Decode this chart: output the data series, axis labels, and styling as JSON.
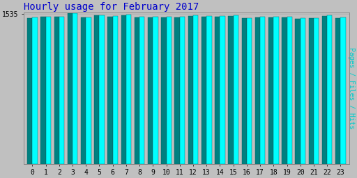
{
  "title": "Hourly usage for February 2017",
  "title_color": "#0000cc",
  "title_fontsize": 10,
  "background_color": "#c0c0c0",
  "plot_bg_color": "#c0c0c0",
  "ylabel_right": "Pages / Files / Hits",
  "ylabel_color": "#00cccc",
  "hours": [
    0,
    1,
    2,
    3,
    4,
    5,
    6,
    7,
    8,
    9,
    10,
    11,
    12,
    13,
    14,
    15,
    16,
    17,
    18,
    19,
    20,
    21,
    22,
    23
  ],
  "pages": [
    1492,
    1503,
    1503,
    1537,
    1495,
    1518,
    1508,
    1521,
    1498,
    1500,
    1498,
    1498,
    1513,
    1508,
    1508,
    1513,
    1488,
    1498,
    1501,
    1498,
    1485,
    1488,
    1513,
    1492
  ],
  "hits": [
    1497,
    1507,
    1507,
    1541,
    1499,
    1522,
    1512,
    1527,
    1502,
    1503,
    1502,
    1502,
    1517,
    1512,
    1512,
    1517,
    1492,
    1502,
    1505,
    1502,
    1489,
    1492,
    1517,
    1497
  ],
  "bar_color_cyan": "#00ffff",
  "bar_color_teal": "#008080",
  "bar_edge_color": "#006060",
  "ylim_min": 0,
  "ylim_max": 1548,
  "ytick_value": 1535,
  "ytick_label": "1535",
  "font_family": "monospace",
  "bar_width": 0.38,
  "figwidth": 5.12,
  "figheight": 2.56,
  "dpi": 100
}
